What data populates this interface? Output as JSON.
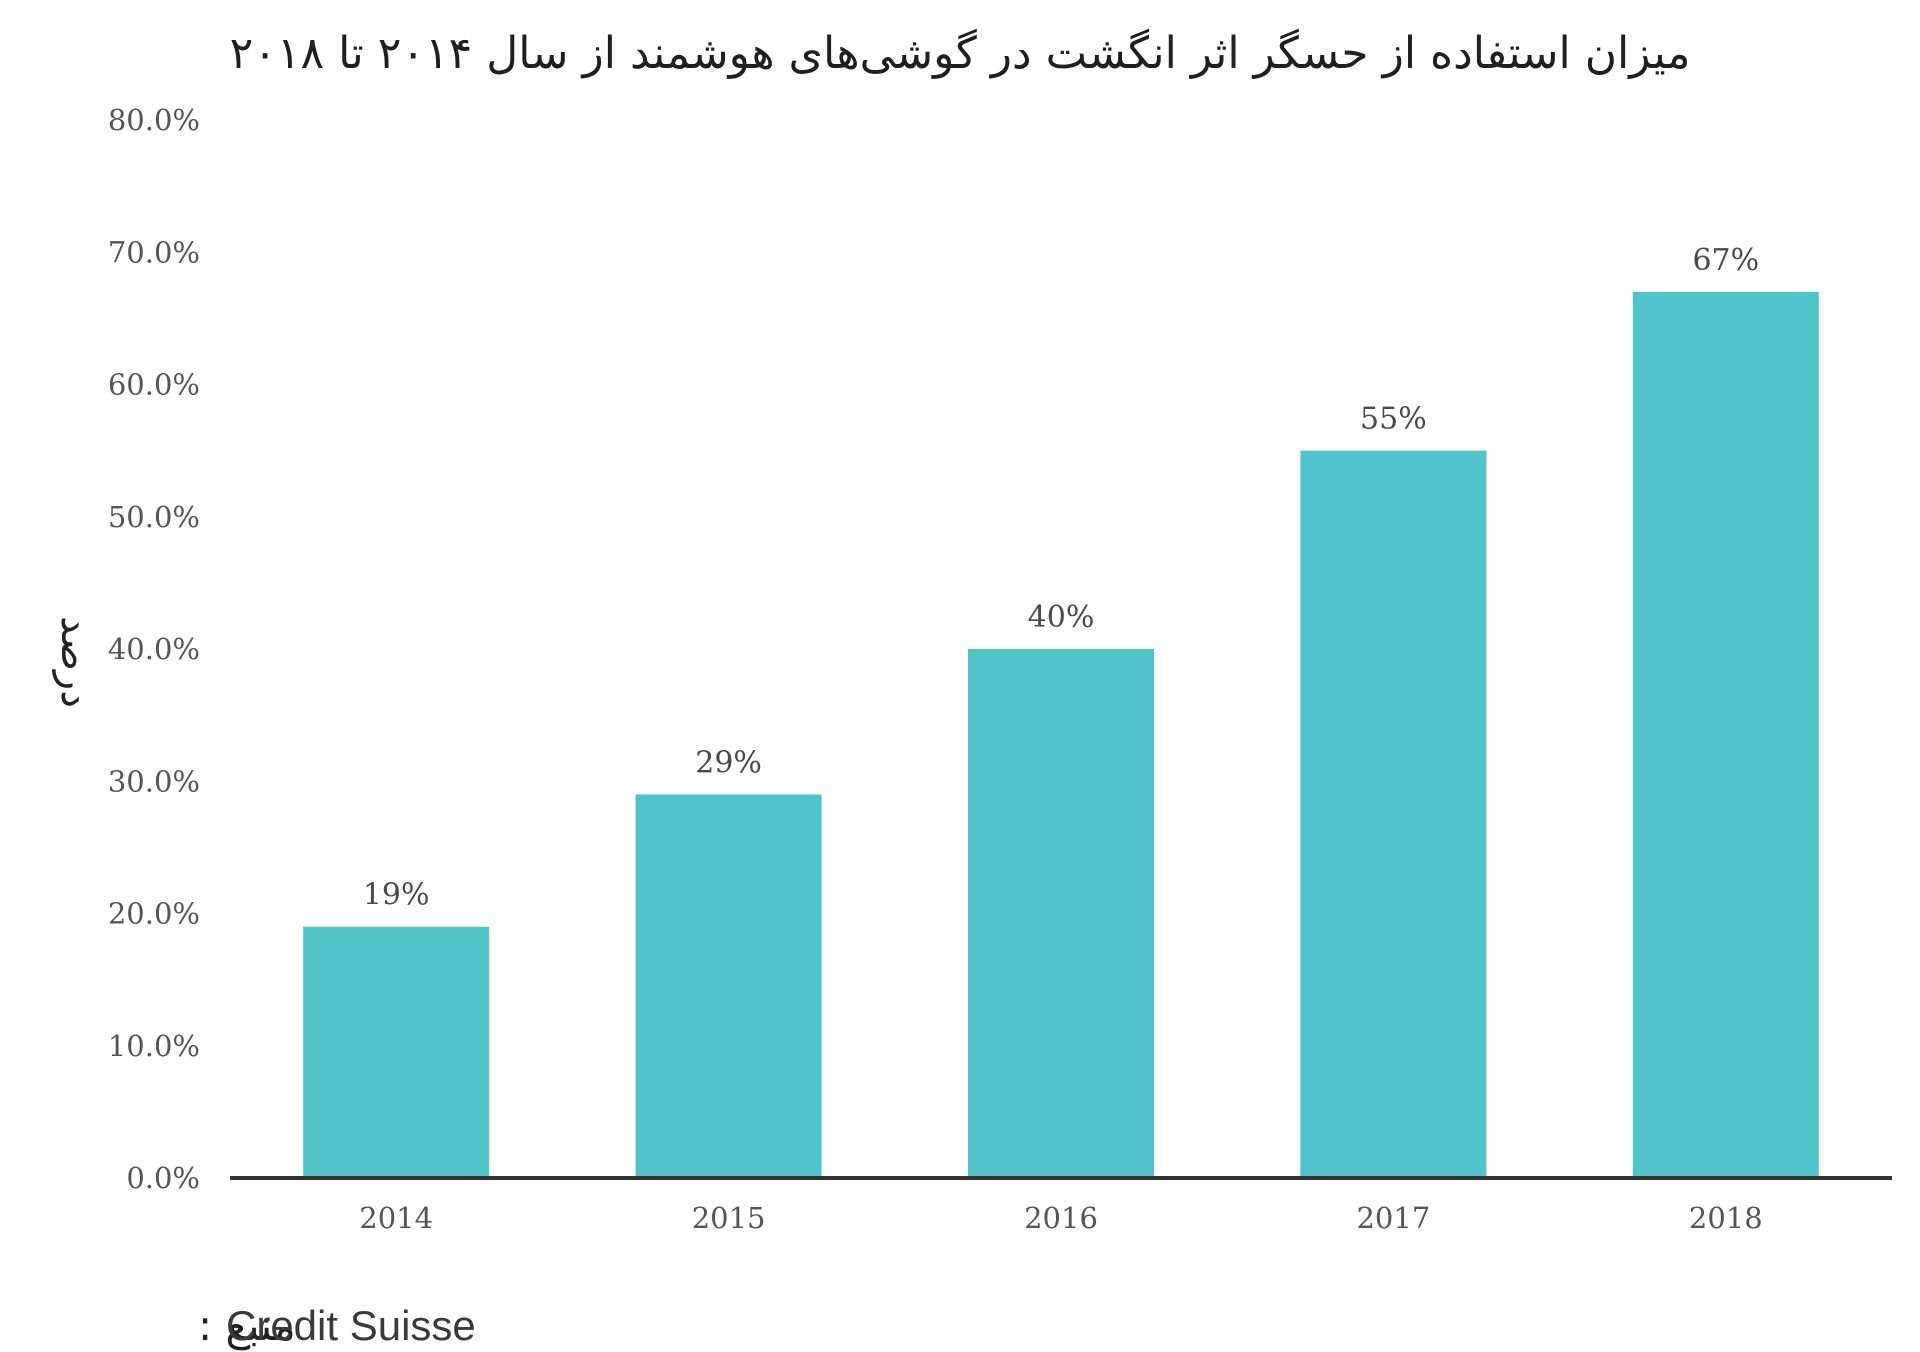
{
  "chart_data": {
    "type": "bar",
    "title": "میزان استفاده از حسگر اثر انگشت در گوشی‌های هوشمند از سال ۲۰۱۴ تا ۲۰۱۸",
    "xlabel": "",
    "ylabel": "درصد",
    "categories": [
      "2014",
      "2015",
      "2016",
      "2017",
      "2018"
    ],
    "values": [
      19,
      29,
      40,
      55,
      67
    ],
    "data_labels": [
      "19%",
      "29%",
      "40%",
      "55%",
      "67%"
    ],
    "ylim": [
      0,
      80
    ],
    "yticks": [
      0,
      10,
      20,
      30,
      40,
      50,
      60,
      70,
      80
    ],
    "ytick_labels": [
      "0.0%",
      "10.0%",
      "20.0%",
      "30.0%",
      "40.0%",
      "50.0%",
      "60.0%",
      "70.0%",
      "80.0%"
    ],
    "grid": false,
    "legend": "none",
    "bar_color": "#52c3c8",
    "axis_color": "#333333"
  },
  "source": {
    "label": "منبع :",
    "name": "Credit Suisse"
  }
}
